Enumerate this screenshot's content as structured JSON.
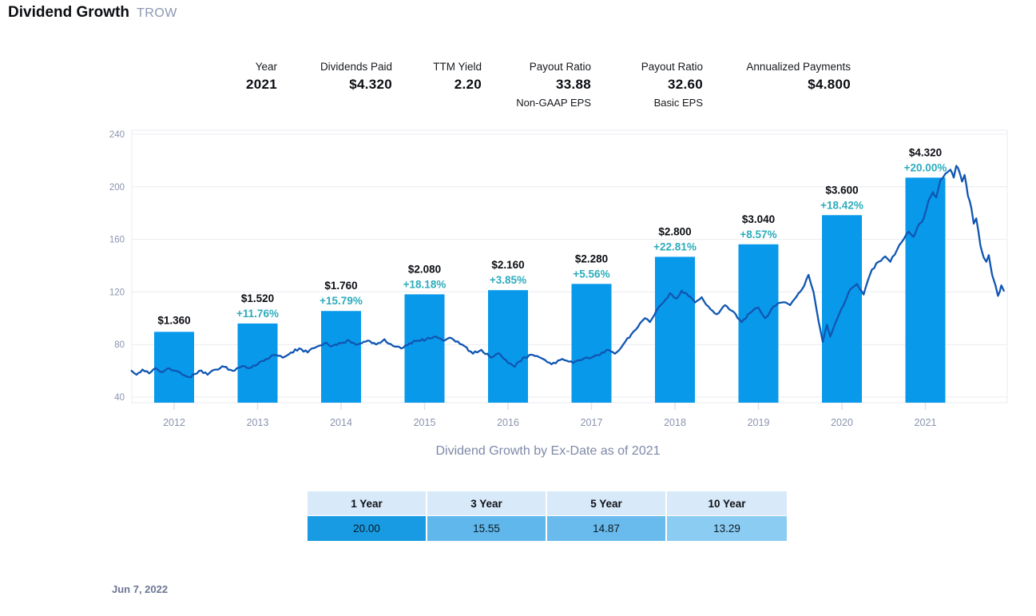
{
  "header": {
    "title": "Dividend Growth",
    "ticker": "TROW"
  },
  "stats": [
    {
      "label": "Year",
      "value": "2021",
      "sub": ""
    },
    {
      "label": "Dividends Paid",
      "value": "$4.320",
      "sub": ""
    },
    {
      "label": "TTM Yield",
      "value": "2.20",
      "sub": ""
    },
    {
      "label": "Payout Ratio",
      "value": "33.88",
      "sub": "Non-GAAP EPS"
    },
    {
      "label": "Payout Ratio",
      "value": "32.60",
      "sub": "Basic EPS"
    },
    {
      "label": "Annualized Payments",
      "value": "$4.800",
      "sub": ""
    }
  ],
  "chart_data": {
    "type": "bar",
    "title": "Dividend Growth by Ex-Date as of 2021",
    "categories": [
      2012,
      2013,
      2014,
      2015,
      2016,
      2017,
      2018,
      2019,
      2020,
      2021
    ],
    "series": [
      {
        "name": "Dividends Paid",
        "type": "bar",
        "values": [
          1.36,
          1.52,
          1.76,
          2.08,
          2.16,
          2.28,
          2.8,
          3.04,
          3.6,
          4.32
        ],
        "labels": [
          "$1.360",
          "$1.520",
          "$1.760",
          "$2.080",
          "$2.160",
          "$2.280",
          "$2.800",
          "$3.040",
          "$3.600",
          "$4.320"
        ],
        "growth": [
          "",
          "+11.76%",
          "+15.79%",
          "+18.18%",
          "+3.85%",
          "+5.56%",
          "+22.81%",
          "+8.57%",
          "+18.42%",
          "+20.00%"
        ]
      },
      {
        "name": "Share Price",
        "type": "line",
        "points": [
          [
            2011.49,
            60
          ],
          [
            2011.55,
            57
          ],
          [
            2011.62,
            61
          ],
          [
            2011.7,
            58
          ],
          [
            2011.78,
            62
          ],
          [
            2011.86,
            59
          ],
          [
            2011.94,
            62
          ],
          [
            2012.02,
            60
          ],
          [
            2012.1,
            57
          ],
          [
            2012.2,
            55
          ],
          [
            2012.3,
            60
          ],
          [
            2012.4,
            57
          ],
          [
            2012.5,
            61
          ],
          [
            2012.6,
            63
          ],
          [
            2012.7,
            60
          ],
          [
            2012.8,
            63
          ],
          [
            2012.9,
            62
          ],
          [
            2013.0,
            65
          ],
          [
            2013.1,
            69
          ],
          [
            2013.2,
            72
          ],
          [
            2013.3,
            70
          ],
          [
            2013.4,
            74
          ],
          [
            2013.5,
            77
          ],
          [
            2013.6,
            74
          ],
          [
            2013.7,
            78
          ],
          [
            2013.8,
            81
          ],
          [
            2013.9,
            79
          ],
          [
            2014.0,
            81
          ],
          [
            2014.1,
            83
          ],
          [
            2014.2,
            80
          ],
          [
            2014.32,
            83
          ],
          [
            2014.42,
            80
          ],
          [
            2014.52,
            84
          ],
          [
            2014.62,
            79
          ],
          [
            2014.72,
            77
          ],
          [
            2014.82,
            81
          ],
          [
            2014.92,
            83
          ],
          [
            2015.02,
            84
          ],
          [
            2015.12,
            86
          ],
          [
            2015.22,
            83
          ],
          [
            2015.32,
            85
          ],
          [
            2015.45,
            80
          ],
          [
            2015.58,
            73
          ],
          [
            2015.68,
            76
          ],
          [
            2015.8,
            70
          ],
          [
            2015.9,
            73
          ],
          [
            2016.0,
            66
          ],
          [
            2016.08,
            63
          ],
          [
            2016.18,
            70
          ],
          [
            2016.3,
            72
          ],
          [
            2016.42,
            69
          ],
          [
            2016.52,
            65
          ],
          [
            2016.65,
            69
          ],
          [
            2016.78,
            66
          ],
          [
            2016.9,
            69
          ],
          [
            2017.0,
            70
          ],
          [
            2017.1,
            72
          ],
          [
            2017.2,
            76
          ],
          [
            2017.28,
            73
          ],
          [
            2017.38,
            80
          ],
          [
            2017.48,
            88
          ],
          [
            2017.58,
            96
          ],
          [
            2017.64,
            100
          ],
          [
            2017.7,
            97
          ],
          [
            2017.78,
            106
          ],
          [
            2017.86,
            112
          ],
          [
            2017.94,
            119
          ],
          [
            2018.02,
            115
          ],
          [
            2018.08,
            121
          ],
          [
            2018.16,
            117
          ],
          [
            2018.24,
            112
          ],
          [
            2018.32,
            116
          ],
          [
            2018.4,
            109
          ],
          [
            2018.5,
            103
          ],
          [
            2018.6,
            110
          ],
          [
            2018.7,
            105
          ],
          [
            2018.8,
            97
          ],
          [
            2018.9,
            104
          ],
          [
            2019.0,
            108
          ],
          [
            2019.08,
            100
          ],
          [
            2019.18,
            109
          ],
          [
            2019.28,
            112
          ],
          [
            2019.38,
            110
          ],
          [
            2019.48,
            119
          ],
          [
            2019.55,
            125
          ],
          [
            2019.6,
            133
          ],
          [
            2019.66,
            120
          ],
          [
            2019.72,
            98
          ],
          [
            2019.77,
            82
          ],
          [
            2019.82,
            95
          ],
          [
            2019.86,
            86
          ],
          [
            2019.94,
            99
          ],
          [
            2020.02,
            110
          ],
          [
            2020.1,
            122
          ],
          [
            2020.18,
            126
          ],
          [
            2020.26,
            118
          ],
          [
            2020.36,
            137
          ],
          [
            2020.44,
            143
          ],
          [
            2020.52,
            147
          ],
          [
            2020.58,
            143
          ],
          [
            2020.66,
            152
          ],
          [
            2020.74,
            160
          ],
          [
            2020.8,
            166
          ],
          [
            2020.86,
            162
          ],
          [
            2020.93,
            172
          ],
          [
            2020.98,
            176
          ],
          [
            2021.04,
            190
          ],
          [
            2021.09,
            196
          ],
          [
            2021.13,
            192
          ],
          [
            2021.18,
            205
          ],
          [
            2021.24,
            210
          ],
          [
            2021.3,
            213
          ],
          [
            2021.34,
            207
          ],
          [
            2021.37,
            216
          ],
          [
            2021.41,
            211
          ],
          [
            2021.44,
            204
          ],
          [
            2021.47,
            209
          ],
          [
            2021.51,
            193
          ],
          [
            2021.55,
            184
          ],
          [
            2021.58,
            172
          ],
          [
            2021.61,
            176
          ],
          [
            2021.66,
            155
          ],
          [
            2021.7,
            146
          ],
          [
            2021.73,
            143
          ],
          [
            2021.76,
            148
          ],
          [
            2021.8,
            133
          ],
          [
            2021.84,
            125
          ],
          [
            2021.87,
            117
          ],
          [
            2021.91,
            125
          ],
          [
            2021.94,
            121
          ]
        ]
      }
    ],
    "y_axis": {
      "ticks": [
        40,
        80,
        120,
        160,
        200,
        240
      ],
      "range": [
        36,
        243
      ]
    },
    "x_axis": {
      "tick_labels": [
        "2012",
        "2013",
        "2014",
        "2015",
        "2016",
        "2017",
        "2018",
        "2019",
        "2020",
        "2021"
      ]
    },
    "legend": "none",
    "grid": "horizontal",
    "colors": {
      "bar": "#0999ea",
      "line": "#1056b2",
      "growth_text": "#2cacbc",
      "label_text": "#0b0e13",
      "axis_text": "#8a94ae",
      "grid": "#e9ebf2",
      "tick": "#dde1ec"
    }
  },
  "table": {
    "headers": [
      "1 Year",
      "3 Year",
      "5 Year",
      "10 Year"
    ],
    "values": [
      "20.00",
      "15.55",
      "14.87",
      "13.29"
    ],
    "header_bg": "#d8e9fa",
    "cell_colors": [
      "#189be2",
      "#5fb7eb",
      "#69bbed",
      "#8bccf2"
    ]
  },
  "footer": {
    "date": "Jun 7, 2022"
  }
}
